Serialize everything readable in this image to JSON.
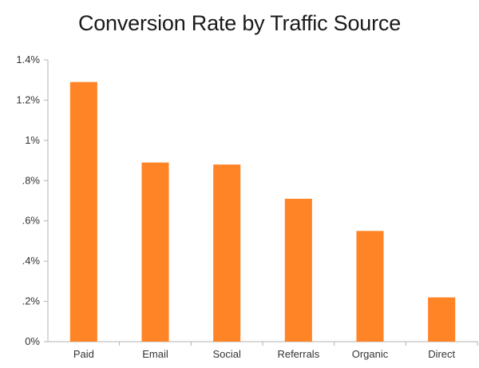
{
  "chart_data": {
    "type": "bar",
    "title": "Conversion Rate by Traffic Source",
    "xlabel": "",
    "ylabel": "",
    "categories": [
      "Paid",
      "Email",
      "Social",
      "Referrals",
      "Organic",
      "Direct"
    ],
    "values": [
      1.29,
      0.89,
      0.88,
      0.71,
      0.55,
      0.22
    ],
    "value_unit": "%",
    "ylim": [
      0,
      1.4
    ],
    "yticks": [
      0,
      0.2,
      0.4,
      0.6,
      0.8,
      1.0,
      1.2,
      1.4
    ],
    "ytick_labels": [
      "0%",
      ".2%",
      ".4%",
      ".6%",
      ".8%",
      "1%",
      "1.2%",
      "1.4%"
    ],
    "grid": false,
    "legend": "none",
    "bar_color": "#FF8426",
    "axis_color": "#b3b3b3"
  }
}
